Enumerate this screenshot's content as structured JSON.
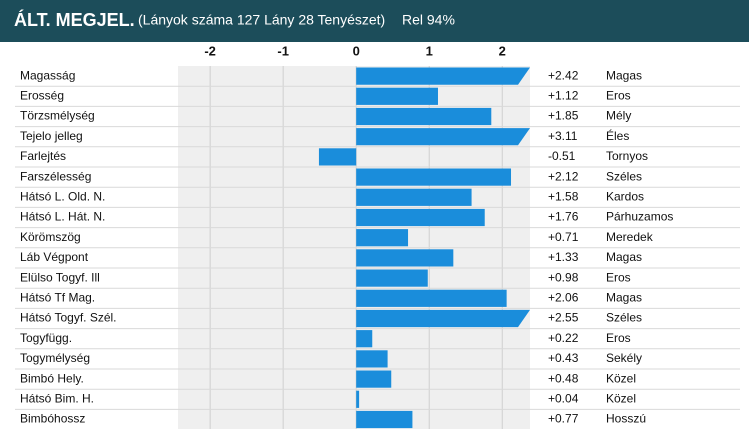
{
  "chart_data": {
    "type": "bar",
    "title": "ÁLT. MEGJEL.",
    "subtitle": "(Lányok száma 127 Lány 28 Tenyészet)",
    "reliability": "Rel 94%",
    "categories": [
      "Magasság",
      "Erosség",
      "Törzsmélység",
      "Tejelo jelleg",
      "Farlejtés",
      "Farszélesség",
      "Hátsó L. Old. N.",
      "Hátsó L. Hát. N.",
      "Körömszög",
      "Láb Végpont",
      "Elülso Togyf. Ill",
      "Hátsó Tf Mag.",
      "Hátsó Togyf. Szél.",
      "Togyfügg.",
      "Togymélység",
      "Bimbó Hely.",
      "Hátsó Bim. H.",
      "Bimbóhossz"
    ],
    "values": [
      2.42,
      1.12,
      1.85,
      3.11,
      -0.51,
      2.12,
      1.58,
      1.76,
      0.71,
      1.33,
      0.98,
      2.06,
      2.55,
      0.22,
      0.43,
      0.48,
      0.04,
      0.77
    ],
    "value_labels": [
      "+2.42",
      "+1.12",
      "+1.85",
      "+3.11",
      "-0.51",
      "+2.12",
      "+1.58",
      "+1.76",
      "+0.71",
      "+1.33",
      "+0.98",
      "+2.06",
      "+2.55",
      "+0.22",
      "+0.43",
      "+0.48",
      "+0.04",
      "+0.77"
    ],
    "descriptors": [
      "Magas",
      "Eros",
      "Mély",
      "Éles",
      "Tornyos",
      "Széles",
      "Kardos",
      "Párhuzamos",
      "Meredek",
      "Magas",
      "Eros",
      "Magas",
      "Széles",
      "Eros",
      "Sekély",
      "Közel",
      "Közel",
      "Hosszú"
    ],
    "xlim": [
      -2.44,
      2.38
    ],
    "xticks": [
      -2,
      -1,
      0,
      1,
      2
    ],
    "color": "#1a8ddb"
  }
}
